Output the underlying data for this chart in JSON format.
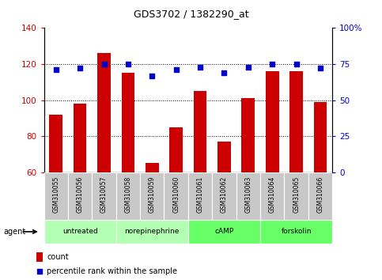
{
  "title": "GDS3702 / 1382290_at",
  "samples": [
    "GSM310055",
    "GSM310056",
    "GSM310057",
    "GSM310058",
    "GSM310059",
    "GSM310060",
    "GSM310061",
    "GSM310062",
    "GSM310063",
    "GSM310064",
    "GSM310065",
    "GSM310066"
  ],
  "counts": [
    92,
    98,
    126,
    115,
    65,
    85,
    105,
    77,
    101,
    116,
    116,
    99
  ],
  "percentile_ranks": [
    71,
    72,
    75,
    75,
    67,
    71,
    73,
    69,
    73,
    75,
    75,
    72
  ],
  "agents": [
    {
      "label": "untreated",
      "start": 0,
      "end": 3,
      "color": "#b3ffb3"
    },
    {
      "label": "norepinephrine",
      "start": 3,
      "end": 6,
      "color": "#b3ffb3"
    },
    {
      "label": "cAMP",
      "start": 6,
      "end": 9,
      "color": "#66ff66"
    },
    {
      "label": "forskolin",
      "start": 9,
      "end": 12,
      "color": "#66ff66"
    }
  ],
  "bar_color": "#cc0000",
  "dot_color": "#0000cc",
  "ylim_left": [
    60,
    140
  ],
  "ylim_right": [
    0,
    100
  ],
  "yticks_left": [
    60,
    80,
    100,
    120,
    140
  ],
  "yticks_right": [
    0,
    25,
    50,
    75,
    100
  ],
  "grid_yticks": [
    80,
    100,
    120
  ],
  "sample_bg_color": "#c8c8c8",
  "legend_count_color": "#cc0000",
  "legend_pct_color": "#0000cc"
}
